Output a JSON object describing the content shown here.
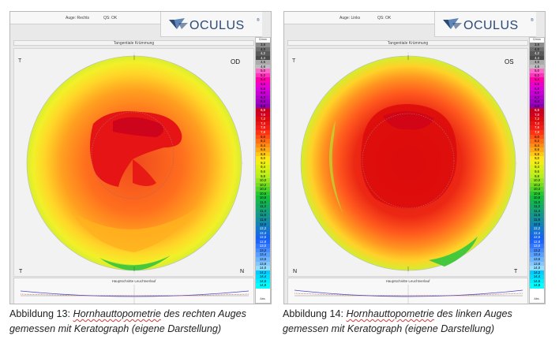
{
  "scale_values": [
    "3,8",
    "4,0",
    "4,2",
    "4,4",
    "4,6",
    "4,8",
    "5,0",
    "5,2",
    "5,4",
    "5,6",
    "5,8",
    "6,0",
    "6,2",
    "6,4",
    "6,6",
    "6,8",
    "7,0",
    "7,2",
    "7,4",
    "7,6",
    "7,8",
    "8,0",
    "8,2",
    "8,4",
    "8,6",
    "8,8",
    "9,0",
    "9,2",
    "9,4",
    "9,6",
    "9,8",
    "10,0",
    "10,2",
    "10,4",
    "10,6",
    "10,8",
    "11,0",
    "11,2",
    "11,4",
    "11,6",
    "11,8",
    "12,0",
    "12,2",
    "12,4",
    "12,6",
    "12,8",
    "13,0",
    "13,2",
    "13,4",
    "13,6",
    "13,8",
    "14,0",
    "14,2",
    "14,4",
    "14,6",
    "14,8"
  ],
  "scale_colors": [
    "#8c8c8c",
    "#6e6e6e",
    "#5a5a5a",
    "#4a4a4a",
    "#aaaaaa",
    "#bdbdbd",
    "#ff66cc",
    "#ff33bb",
    "#ff00aa",
    "#ee00cc",
    "#dd00dd",
    "#c800d4",
    "#b400cc",
    "#a000c0",
    "#8c00b4",
    "#c8001e",
    "#d2001e",
    "#dc0a0a",
    "#e61414",
    "#f01e14",
    "#ff3214",
    "#ff5014",
    "#ff6e14",
    "#ff8c14",
    "#ffaa14",
    "#ffc814",
    "#ffe614",
    "#f0f014",
    "#dcf014",
    "#c8f014",
    "#b4f01e",
    "#96e61e",
    "#78dc1e",
    "#50d228",
    "#28c832",
    "#14be3c",
    "#14b450",
    "#14aa64",
    "#14a078",
    "#14968c",
    "#148ca0",
    "#1482b4",
    "#1478c8",
    "#146edc",
    "#1464f0",
    "#1e64ff",
    "#3278ff",
    "#468cff",
    "#5aa0ff",
    "#6eb4ff",
    "#82c8ff",
    "#96dcff",
    "#00ccff",
    "#00ddff",
    "#00eeff",
    "#00ffff"
  ],
  "left": {
    "info_eye": "Auge: Rechts",
    "info_qs": "QS: OK",
    "logo_text": "OCULUS",
    "logo_reg": "®",
    "map_title": "Tangentiale Krümmung",
    "eye_label": "OD",
    "corner_left": "T",
    "corner_right": "N",
    "side_marker": "T",
    "meridian_title": "Hauptschnitte Leuchtverlauf",
    "scale_unit_top": "D/mm",
    "scale_unit_bottom": "Abs.",
    "caption_num": "Abbildung 13:",
    "caption_squiggle": "Hornhauttopometrie",
    "caption_rest": " des rechten Auges gemessen mit Keratograph (eigene Darstellung)"
  },
  "right": {
    "info_eye": "Auge: Links",
    "info_qs": "QS: OK",
    "logo_text": "OCULUS",
    "logo_reg": "®",
    "map_title": "Tangentiale Krümmung",
    "eye_label": "OS",
    "corner_left": "N",
    "corner_right": "T",
    "side_marker": "T",
    "meridian_title": "Hauptschnitte Leuchtverlauf",
    "scale_unit_top": "D/mm",
    "scale_unit_bottom": "Abs.",
    "caption_num": "Abbildung 14:",
    "caption_squiggle": "Hornhauttopometrie",
    "caption_rest": " des linken Auges gemessen mit Keratograph (eigene Darstellung)"
  }
}
